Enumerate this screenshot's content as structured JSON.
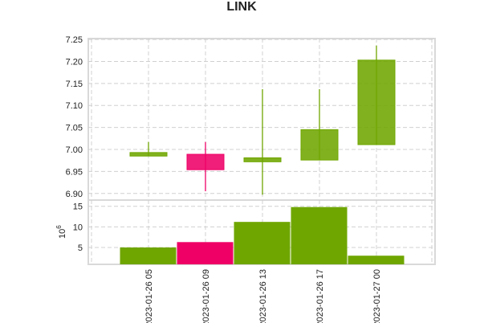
{
  "chart_data": {
    "type": "candlestick",
    "title": "LINK",
    "colors": {
      "up": "#6fa600",
      "down": "#ee0066"
    },
    "categories": [
      "2023-01-26 05",
      "2023-01-26 09",
      "2023-01-26 13",
      "2023-01-26 17",
      "2023-01-27 00"
    ],
    "candles": [
      {
        "open": 6.985,
        "high": 7.017,
        "low": 6.985,
        "close": 6.993
      },
      {
        "open": 6.989,
        "high": 7.017,
        "low": 6.905,
        "close": 6.954
      },
      {
        "open": 6.972,
        "high": 7.137,
        "low": 6.897,
        "close": 6.981
      },
      {
        "open": 6.976,
        "high": 7.137,
        "low": 6.976,
        "close": 7.045
      },
      {
        "open": 7.011,
        "high": 7.236,
        "low": 7.011,
        "close": 7.203
      }
    ],
    "price_axis": {
      "ylim": [
        6.885,
        7.252
      ],
      "ticks": [
        "6.90",
        "6.95",
        "7.00",
        "7.05",
        "7.10",
        "7.15",
        "7.20",
        "7.25"
      ]
    },
    "volume": {
      "values": [
        5.0,
        6.3,
        11.2,
        14.8,
        3.0
      ],
      "colors": [
        "up",
        "down",
        "up",
        "up",
        "up"
      ],
      "ylim": [
        0.9,
        16.5
      ],
      "ticks": [
        "5",
        "10",
        "15"
      ],
      "ylabel_base": "10",
      "ylabel_exp": "6"
    },
    "grid": true
  }
}
